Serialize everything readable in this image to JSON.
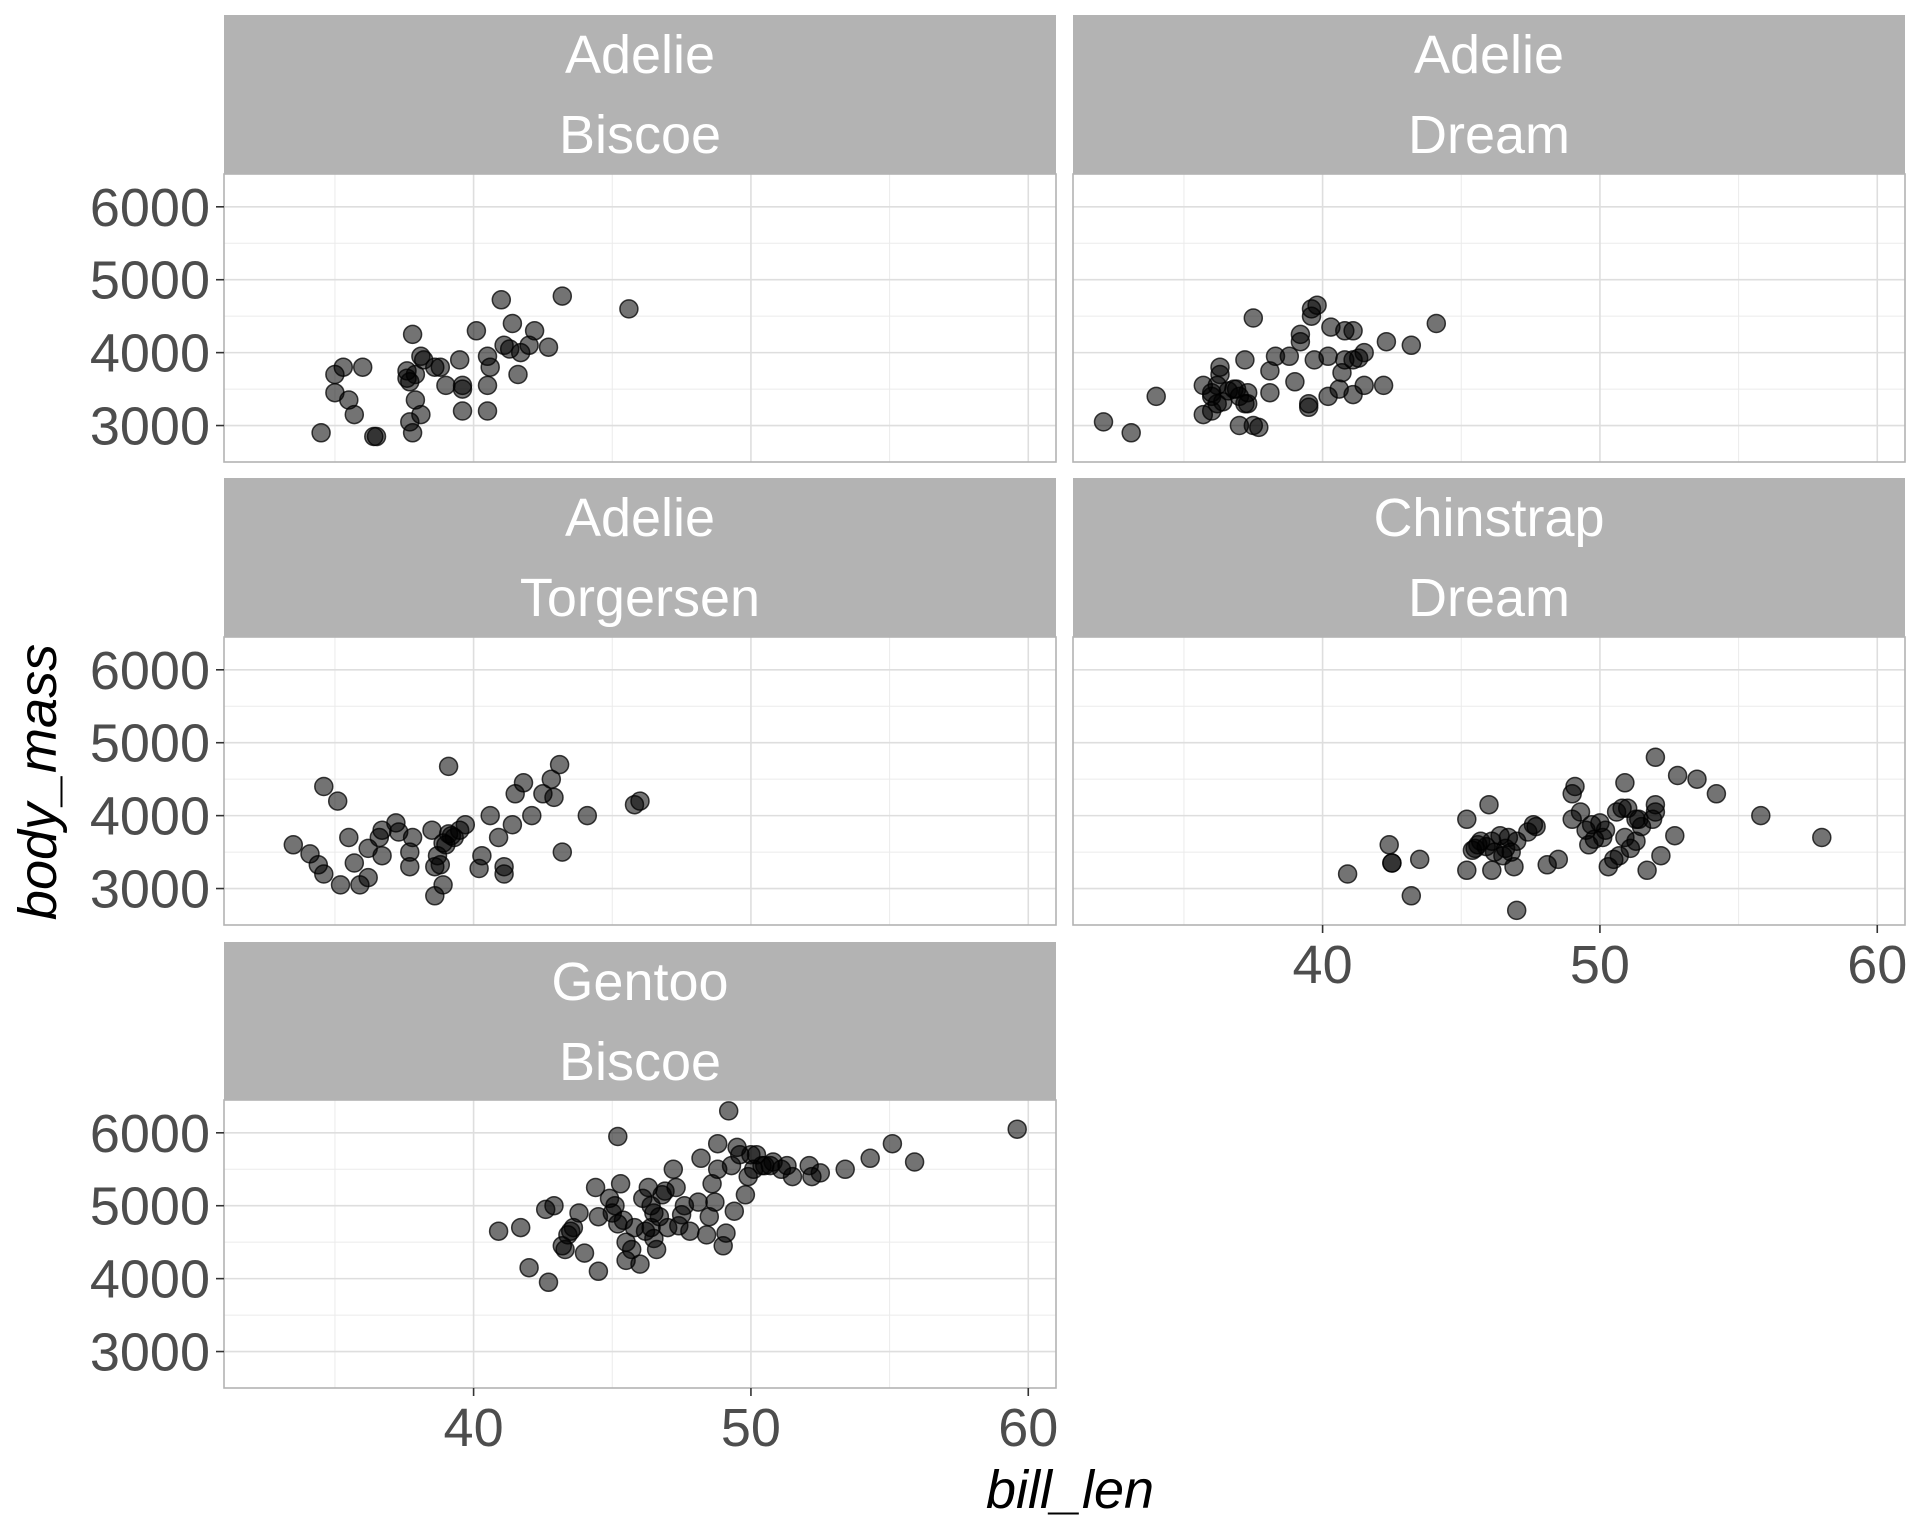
{
  "chart_data": {
    "type": "scatter",
    "title": "",
    "xlabel": "bill_len",
    "ylabel": "body_mass",
    "xlim": [
      31,
      61
    ],
    "ylim": [
      2500,
      6450
    ],
    "x_ticks": [
      40,
      50,
      60
    ],
    "y_ticks": [
      3000,
      4000,
      5000,
      6000
    ],
    "grid": true,
    "point_color": "#000000",
    "point_alpha": 0.55,
    "panels": [
      {
        "strip": [
          "Adelie",
          "Biscoe"
        ],
        "points": [
          [
            34.5,
            2900
          ],
          [
            35.0,
            3450
          ],
          [
            35.3,
            3800
          ],
          [
            35.0,
            3700
          ],
          [
            35.5,
            3350
          ],
          [
            35.7,
            3150
          ],
          [
            36.0,
            3800
          ],
          [
            36.4,
            2850
          ],
          [
            36.5,
            2850
          ],
          [
            37.6,
            3750
          ],
          [
            37.7,
            3600
          ],
          [
            37.6,
            3650
          ],
          [
            37.8,
            4250
          ],
          [
            37.7,
            3050
          ],
          [
            37.9,
            3350
          ],
          [
            37.8,
            2900
          ],
          [
            38.1,
            3150
          ],
          [
            37.9,
            3700
          ],
          [
            38.2,
            3900
          ],
          [
            38.1,
            3950
          ],
          [
            38.6,
            3800
          ],
          [
            38.8,
            3800
          ],
          [
            39.0,
            3550
          ],
          [
            39.5,
            3900
          ],
          [
            39.6,
            3550
          ],
          [
            39.6,
            3500
          ],
          [
            39.6,
            3200
          ],
          [
            40.1,
            4300
          ],
          [
            40.5,
            3950
          ],
          [
            40.5,
            3550
          ],
          [
            40.6,
            3800
          ],
          [
            40.5,
            3200
          ],
          [
            41.0,
            4725
          ],
          [
            41.1,
            4100
          ],
          [
            41.3,
            4050
          ],
          [
            41.4,
            4400
          ],
          [
            41.6,
            3700
          ],
          [
            41.7,
            4000
          ],
          [
            42.2,
            4300
          ],
          [
            42.0,
            4100
          ],
          [
            42.7,
            4075
          ],
          [
            43.2,
            4775
          ],
          [
            45.6,
            4600
          ]
        ]
      },
      {
        "strip": [
          "Adelie",
          "Dream"
        ],
        "points": [
          [
            32.1,
            3050
          ],
          [
            33.1,
            2900
          ],
          [
            34.0,
            3400
          ],
          [
            35.7,
            3150
          ],
          [
            35.7,
            3550
          ],
          [
            36.0,
            3450
          ],
          [
            36.0,
            3400
          ],
          [
            36.2,
            3300
          ],
          [
            36.0,
            3200
          ],
          [
            36.2,
            3550
          ],
          [
            36.3,
            3700
          ],
          [
            36.3,
            3800
          ],
          [
            36.4,
            3325
          ],
          [
            36.6,
            3475
          ],
          [
            36.8,
            3500
          ],
          [
            36.9,
            3500
          ],
          [
            37.0,
            3400
          ],
          [
            37.0,
            3000
          ],
          [
            37.2,
            3900
          ],
          [
            37.2,
            3300
          ],
          [
            37.3,
            3450
          ],
          [
            37.3,
            3300
          ],
          [
            37.5,
            4475
          ],
          [
            37.5,
            3000
          ],
          [
            37.7,
            2975
          ],
          [
            38.1,
            3750
          ],
          [
            38.1,
            3450
          ],
          [
            38.3,
            3950
          ],
          [
            38.8,
            3950
          ],
          [
            39.0,
            3600
          ],
          [
            39.2,
            4150
          ],
          [
            39.2,
            4250
          ],
          [
            39.5,
            3300
          ],
          [
            39.5,
            3250
          ],
          [
            39.6,
            4500
          ],
          [
            39.6,
            4600
          ],
          [
            39.7,
            3900
          ],
          [
            39.8,
            4650
          ],
          [
            40.2,
            3400
          ],
          [
            40.2,
            3950
          ],
          [
            40.3,
            4350
          ],
          [
            40.6,
            3500
          ],
          [
            40.7,
            3725
          ],
          [
            40.8,
            3900
          ],
          [
            40.8,
            4300
          ],
          [
            41.1,
            3900
          ],
          [
            41.1,
            4300
          ],
          [
            41.1,
            3425
          ],
          [
            41.3,
            3925
          ],
          [
            41.5,
            3550
          ],
          [
            41.5,
            4000
          ],
          [
            42.2,
            3550
          ],
          [
            42.3,
            4150
          ],
          [
            43.2,
            4100
          ],
          [
            44.1,
            4400
          ]
        ]
      },
      {
        "strip": [
          "Adelie",
          "Torgersen"
        ],
        "points": [
          [
            33.5,
            3600
          ],
          [
            34.1,
            3475
          ],
          [
            34.4,
            3325
          ],
          [
            34.6,
            3200
          ],
          [
            34.6,
            4400
          ],
          [
            35.1,
            4200
          ],
          [
            35.2,
            3050
          ],
          [
            35.5,
            3700
          ],
          [
            35.7,
            3350
          ],
          [
            35.9,
            3050
          ],
          [
            36.2,
            3550
          ],
          [
            36.2,
            3150
          ],
          [
            36.6,
            3700
          ],
          [
            36.7,
            3450
          ],
          [
            36.7,
            3800
          ],
          [
            37.2,
            3900
          ],
          [
            37.3,
            3775
          ],
          [
            37.7,
            3300
          ],
          [
            37.8,
            3700
          ],
          [
            37.7,
            3500
          ],
          [
            38.5,
            3800
          ],
          [
            38.6,
            3300
          ],
          [
            38.6,
            2900
          ],
          [
            38.7,
            3450
          ],
          [
            38.8,
            3325
          ],
          [
            38.9,
            3625
          ],
          [
            38.9,
            3050
          ],
          [
            39.0,
            3600
          ],
          [
            39.1,
            3750
          ],
          [
            39.1,
            4675
          ],
          [
            39.2,
            3725
          ],
          [
            39.3,
            3700
          ],
          [
            39.5,
            3800
          ],
          [
            39.7,
            3875
          ],
          [
            40.2,
            3275
          ],
          [
            40.3,
            3450
          ],
          [
            40.6,
            4000
          ],
          [
            40.9,
            3700
          ],
          [
            41.1,
            3300
          ],
          [
            41.1,
            3200
          ],
          [
            41.4,
            3875
          ],
          [
            41.5,
            4300
          ],
          [
            41.8,
            4450
          ],
          [
            42.1,
            4000
          ],
          [
            42.5,
            4300
          ],
          [
            42.8,
            4500
          ],
          [
            42.9,
            4250
          ],
          [
            43.1,
            4700
          ],
          [
            43.2,
            3500
          ],
          [
            44.1,
            4000
          ],
          [
            45.8,
            4150
          ],
          [
            46.0,
            4200
          ]
        ]
      },
      {
        "strip": [
          "Chinstrap",
          "Dream"
        ],
        "points": [
          [
            40.9,
            3200
          ],
          [
            42.4,
            3600
          ],
          [
            42.5,
            3350
          ],
          [
            42.5,
            3350
          ],
          [
            43.2,
            2900
          ],
          [
            43.5,
            3400
          ],
          [
            45.2,
            3950
          ],
          [
            45.2,
            3250
          ],
          [
            45.4,
            3525
          ],
          [
            45.5,
            3550
          ],
          [
            45.6,
            3600
          ],
          [
            45.7,
            3650
          ],
          [
            45.9,
            3575
          ],
          [
            46.1,
            3650
          ],
          [
            46.0,
            4150
          ],
          [
            46.1,
            3250
          ],
          [
            46.2,
            3500
          ],
          [
            46.4,
            3725
          ],
          [
            46.5,
            3450
          ],
          [
            46.6,
            3550
          ],
          [
            46.7,
            3700
          ],
          [
            46.8,
            3500
          ],
          [
            46.9,
            3300
          ],
          [
            47.0,
            3650
          ],
          [
            47.0,
            2700
          ],
          [
            47.4,
            3775
          ],
          [
            47.6,
            3875
          ],
          [
            47.7,
            3850
          ],
          [
            48.1,
            3325
          ],
          [
            48.5,
            3400
          ],
          [
            49.0,
            3950
          ],
          [
            49.0,
            4300
          ],
          [
            49.1,
            4400
          ],
          [
            49.3,
            4050
          ],
          [
            49.5,
            3800
          ],
          [
            49.6,
            3600
          ],
          [
            49.7,
            3875
          ],
          [
            49.8,
            3675
          ],
          [
            50.0,
            3900
          ],
          [
            50.1,
            3700
          ],
          [
            50.2,
            3800
          ],
          [
            50.3,
            3300
          ],
          [
            50.5,
            3400
          ],
          [
            50.6,
            4050
          ],
          [
            50.7,
            3450
          ],
          [
            50.8,
            4100
          ],
          [
            50.9,
            4450
          ],
          [
            50.9,
            3700
          ],
          [
            51.0,
            4100
          ],
          [
            51.1,
            3550
          ],
          [
            51.3,
            3650
          ],
          [
            51.3,
            3950
          ],
          [
            51.4,
            3950
          ],
          [
            51.5,
            3850
          ],
          [
            51.7,
            3250
          ],
          [
            51.9,
            3950
          ],
          [
            52.0,
            4050
          ],
          [
            52.0,
            4800
          ],
          [
            52.0,
            4150
          ],
          [
            52.2,
            3450
          ],
          [
            52.7,
            3725
          ],
          [
            52.8,
            4550
          ],
          [
            53.5,
            4500
          ],
          [
            54.2,
            4300
          ],
          [
            55.8,
            4000
          ],
          [
            58.0,
            3700
          ]
        ]
      },
      {
        "strip": [
          "Gentoo",
          "Biscoe"
        ],
        "points": [
          [
            40.9,
            4650
          ],
          [
            41.7,
            4700
          ],
          [
            42.0,
            4150
          ],
          [
            42.6,
            4950
          ],
          [
            42.7,
            3950
          ],
          [
            42.9,
            5000
          ],
          [
            43.2,
            4450
          ],
          [
            43.3,
            4400
          ],
          [
            43.4,
            4600
          ],
          [
            43.5,
            4650
          ],
          [
            43.6,
            4700
          ],
          [
            43.8,
            4900
          ],
          [
            44.0,
            4350
          ],
          [
            44.4,
            5250
          ],
          [
            44.5,
            4100
          ],
          [
            44.5,
            4850
          ],
          [
            44.9,
            5100
          ],
          [
            45.0,
            4900
          ],
          [
            45.1,
            5000
          ],
          [
            45.2,
            5950
          ],
          [
            45.2,
            4750
          ],
          [
            45.3,
            5300
          ],
          [
            45.4,
            4800
          ],
          [
            45.5,
            4250
          ],
          [
            45.5,
            4500
          ],
          [
            45.7,
            4400
          ],
          [
            45.8,
            4700
          ],
          [
            46.0,
            4200
          ],
          [
            46.1,
            5100
          ],
          [
            46.2,
            4650
          ],
          [
            46.3,
            5250
          ],
          [
            46.4,
            4700
          ],
          [
            46.4,
            5000
          ],
          [
            46.5,
            4550
          ],
          [
            46.5,
            4900
          ],
          [
            46.6,
            4400
          ],
          [
            46.7,
            4850
          ],
          [
            46.8,
            5150
          ],
          [
            46.9,
            5200
          ],
          [
            47.0,
            4700
          ],
          [
            47.2,
            5500
          ],
          [
            47.3,
            5250
          ],
          [
            47.4,
            4725
          ],
          [
            47.5,
            4875
          ],
          [
            47.6,
            5000
          ],
          [
            47.8,
            4650
          ],
          [
            48.1,
            5050
          ],
          [
            48.2,
            5650
          ],
          [
            48.4,
            4600
          ],
          [
            48.5,
            4850
          ],
          [
            48.6,
            5300
          ],
          [
            48.7,
            5050
          ],
          [
            48.8,
            5500
          ],
          [
            48.8,
            5850
          ],
          [
            49.0,
            4450
          ],
          [
            49.1,
            4625
          ],
          [
            49.2,
            6300
          ],
          [
            49.3,
            5550
          ],
          [
            49.4,
            4925
          ],
          [
            49.5,
            5800
          ],
          [
            49.6,
            5700
          ],
          [
            49.8,
            5150
          ],
          [
            49.9,
            5400
          ],
          [
            50.0,
            5700
          ],
          [
            50.1,
            5500
          ],
          [
            50.2,
            5700
          ],
          [
            50.4,
            5550
          ],
          [
            50.5,
            5550
          ],
          [
            50.7,
            5550
          ],
          [
            50.8,
            5600
          ],
          [
            51.1,
            5500
          ],
          [
            51.3,
            5550
          ],
          [
            51.5,
            5400
          ],
          [
            52.1,
            5550
          ],
          [
            52.2,
            5400
          ],
          [
            52.5,
            5450
          ],
          [
            53.4,
            5500
          ],
          [
            54.3,
            5650
          ],
          [
            55.1,
            5850
          ],
          [
            55.9,
            5600
          ],
          [
            59.6,
            6050
          ]
        ]
      }
    ]
  }
}
